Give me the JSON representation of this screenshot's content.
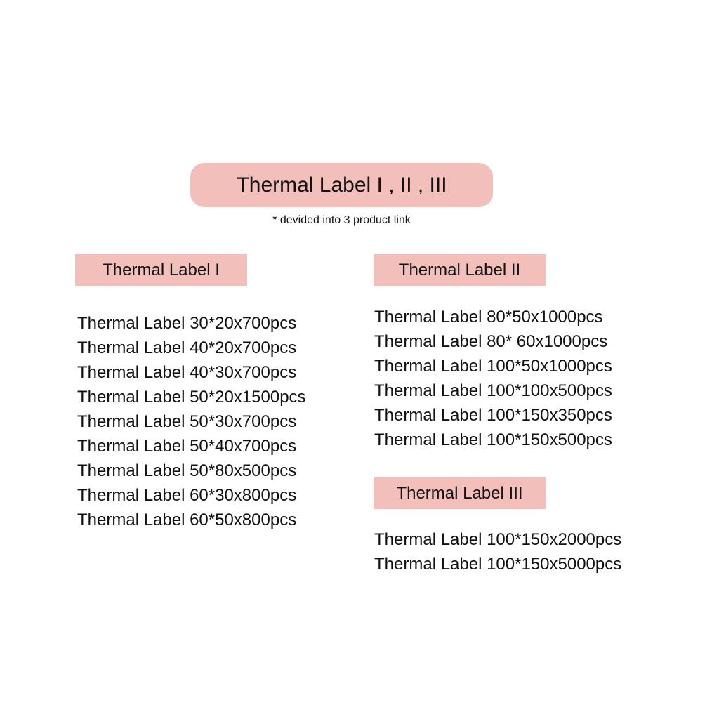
{
  "title": "Thermal Label I , II , III",
  "note": "* devided into 3  product link",
  "colors": {
    "accent": "#f2bfbb"
  },
  "sections": [
    {
      "heading": "Thermal Label I",
      "items": [
        "Thermal Label 30*20x700pcs",
        "Thermal Label 40*20x700pcs",
        "Thermal Label 40*30x700pcs",
        "Thermal Label 50*20x1500pcs",
        "Thermal Label 50*30x700pcs",
        "Thermal Label 50*40x700pcs",
        "Thermal Label 50*80x500pcs",
        "Thermal Label 60*30x800pcs",
        "Thermal Label 60*50x800pcs"
      ]
    },
    {
      "heading": "Thermal Label II",
      "items": [
        "Thermal Label 80*50x1000pcs",
        "Thermal Label 80* 60x1000pcs",
        "Thermal Label 100*50x1000pcs",
        "Thermal Label 100*100x500pcs",
        "Thermal Label 100*150x350pcs",
        "Thermal Label 100*150x500pcs"
      ]
    },
    {
      "heading": "Thermal Label III",
      "items": [
        "Thermal Label 100*150x2000pcs",
        "Thermal Label 100*150x5000pcs"
      ]
    }
  ]
}
